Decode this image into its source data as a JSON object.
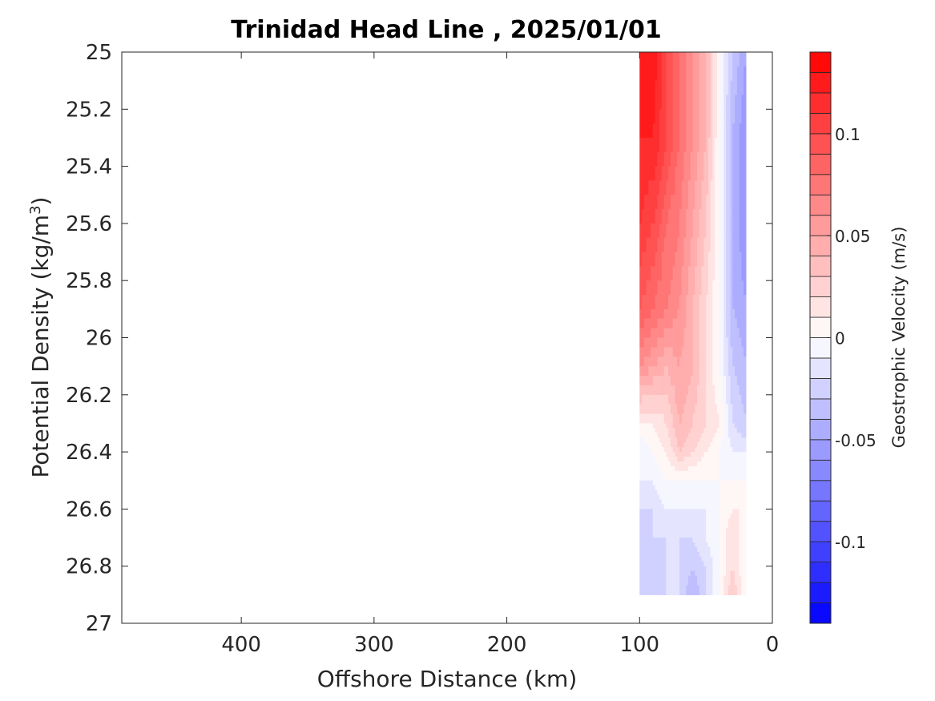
{
  "chart_data": {
    "type": "heatmap",
    "title": "Trinidad Head Line , 2025/01/01",
    "xlabel": "Offshore Distance (km)",
    "ylabel_main": "Potential Density (kg/m",
    "ylabel_sup": "3",
    "ylabel_close": ")",
    "xlim": [
      490,
      0
    ],
    "x_reversed": true,
    "ylim": [
      25,
      27
    ],
    "y_reversed": true,
    "x_ticks": [
      400,
      300,
      200,
      100,
      0
    ],
    "x_tick_labels": [
      "400",
      "300",
      "200",
      "100",
      "0"
    ],
    "y_ticks": [
      25,
      25.2,
      25.4,
      25.6,
      25.8,
      26,
      26.2,
      26.4,
      26.6,
      26.8,
      27
    ],
    "y_tick_labels": [
      "25",
      "25.2",
      "25.4",
      "25.6",
      "25.8",
      "26",
      "26.2",
      "26.4",
      "26.6",
      "26.8",
      "27"
    ],
    "colorbar": {
      "label": "Geostrophic Velocity (m/s)",
      "min": -0.14,
      "max": 0.14,
      "levels": 28,
      "ticks": [
        0.1,
        0.05,
        0,
        -0.05,
        -0.1
      ],
      "tick_labels": [
        "0.1",
        "0.05",
        "0",
        "-0.05",
        "-0.1"
      ],
      "colormap": "blue-white-red"
    },
    "distances_km": [
      100,
      90,
      80,
      70,
      60,
      50,
      40,
      30,
      20
    ],
    "densities": [
      25.0,
      25.3,
      25.6,
      25.9,
      26.1,
      26.3,
      26.4,
      26.5,
      26.6,
      26.7,
      26.8,
      26.9
    ],
    "velocity_m_s": [
      [
        0.13,
        0.13,
        0.1,
        0.08,
        0.06,
        0.04,
        0.0,
        -0.03,
        -0.05
      ],
      [
        0.12,
        0.12,
        0.1,
        0.08,
        0.06,
        0.04,
        0.0,
        -0.04,
        -0.06
      ],
      [
        0.11,
        0.1,
        0.08,
        0.07,
        0.05,
        0.03,
        0.0,
        -0.04,
        -0.06
      ],
      [
        0.09,
        0.08,
        0.07,
        0.06,
        0.04,
        0.02,
        0.0,
        -0.04,
        -0.05
      ],
      [
        0.06,
        0.05,
        0.04,
        0.05,
        0.04,
        0.02,
        0.0,
        -0.03,
        -0.04
      ],
      [
        0.01,
        0.01,
        0.02,
        0.04,
        0.03,
        0.02,
        0.01,
        -0.02,
        -0.03
      ],
      [
        -0.01,
        0.0,
        0.01,
        0.03,
        0.02,
        0.01,
        0.0,
        -0.01,
        -0.01
      ],
      [
        -0.01,
        -0.01,
        0.0,
        0.0,
        0.0,
        0.0,
        0.0,
        0.0,
        0.0
      ],
      [
        -0.02,
        -0.02,
        -0.01,
        -0.01,
        -0.01,
        -0.01,
        0.0,
        0.01,
        0.01
      ],
      [
        -0.03,
        -0.02,
        -0.02,
        -0.02,
        -0.02,
        -0.01,
        0.0,
        0.02,
        0.0
      ],
      [
        -0.03,
        -0.03,
        -0.02,
        -0.02,
        -0.03,
        -0.02,
        0.0,
        0.02,
        0.0
      ],
      [
        -0.03,
        -0.02,
        -0.02,
        -0.02,
        -0.04,
        -0.02,
        0.0,
        0.03,
        0.0
      ]
    ]
  }
}
